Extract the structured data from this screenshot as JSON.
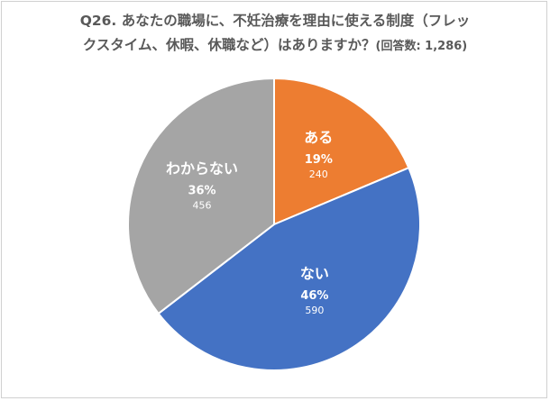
{
  "chart_data": {
    "type": "pie",
    "title_line1": "Q26. あなたの職場に、不妊治療を理由に使える制度（フレッ",
    "title_line2": "クスタイム、休暇、休職など）はありますか？",
    "title_note": "(回答数: 1,286)",
    "slices": [
      {
        "label": "ある",
        "percent": "19%",
        "count": "240",
        "value": 240,
        "color": "#ED7D31"
      },
      {
        "label": "ない",
        "percent": "46%",
        "count": "590",
        "value": 590,
        "color": "#4472C4"
      },
      {
        "label": "わからない",
        "percent": "36%",
        "count": "456",
        "value": 456,
        "color": "#A5A5A5"
      }
    ],
    "start_angle_deg": 0,
    "direction": "clockwise"
  }
}
